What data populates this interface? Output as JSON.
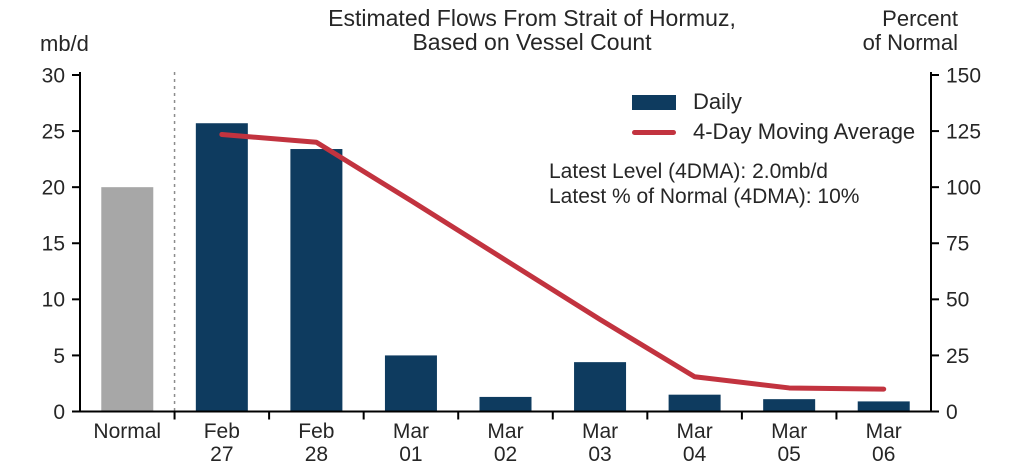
{
  "chart_data": {
    "type": "bar+line combo",
    "title": "Estimated Flows From Strait of Hormuz,",
    "subtitle": "Based on Vessel Count",
    "categories": [
      "Normal",
      "Feb\n27",
      "Feb\n28",
      "Mar\n01",
      "Mar\n02",
      "Mar\n03",
      "Mar\n04",
      "Mar\n05",
      "Mar\n06"
    ],
    "series": [
      {
        "name": "Daily",
        "type": "bar",
        "axis": "left",
        "values": [
          20.0,
          25.7,
          23.4,
          5.0,
          1.3,
          4.4,
          1.5,
          1.1,
          0.9
        ],
        "colors": [
          "#a7a7a7",
          "#0e3b5f",
          "#0e3b5f",
          "#0e3b5f",
          "#0e3b5f",
          "#0e3b5f",
          "#0e3b5f",
          "#0e3b5f",
          "#0e3b5f"
        ]
      },
      {
        "name": "4-Day Moving Average",
        "type": "line",
        "axis": "left",
        "color": "#c2333f",
        "values": [
          null,
          24.7,
          24.0,
          18.8,
          13.5,
          8.2,
          3.1,
          2.1,
          2.0
        ]
      }
    ],
    "left_axis": {
      "unit": "mb/d",
      "ticks": [
        0,
        5,
        10,
        15,
        20,
        25,
        30
      ],
      "range": [
        0,
        30
      ]
    },
    "right_axis": {
      "unit_line1": "Percent",
      "unit_line2": "of Normal",
      "ticks": [
        0,
        25,
        50,
        75,
        100,
        125,
        150
      ],
      "range": [
        0,
        150
      ]
    },
    "separator_after_index": 0,
    "annotations": [
      "Latest Level (4DMA): 2.0mb/d",
      "Latest % of Normal (4DMA): 10%"
    ],
    "legend_position": "upper-right",
    "grid": false
  },
  "colors": {
    "bar_daily": "#0e3b5f",
    "bar_normal": "#a7a7a7",
    "line_moving_average": "#c2333f",
    "axis": "#000000",
    "separator": "#8c8c8c",
    "text": "#262626",
    "background": "#ffffff"
  }
}
